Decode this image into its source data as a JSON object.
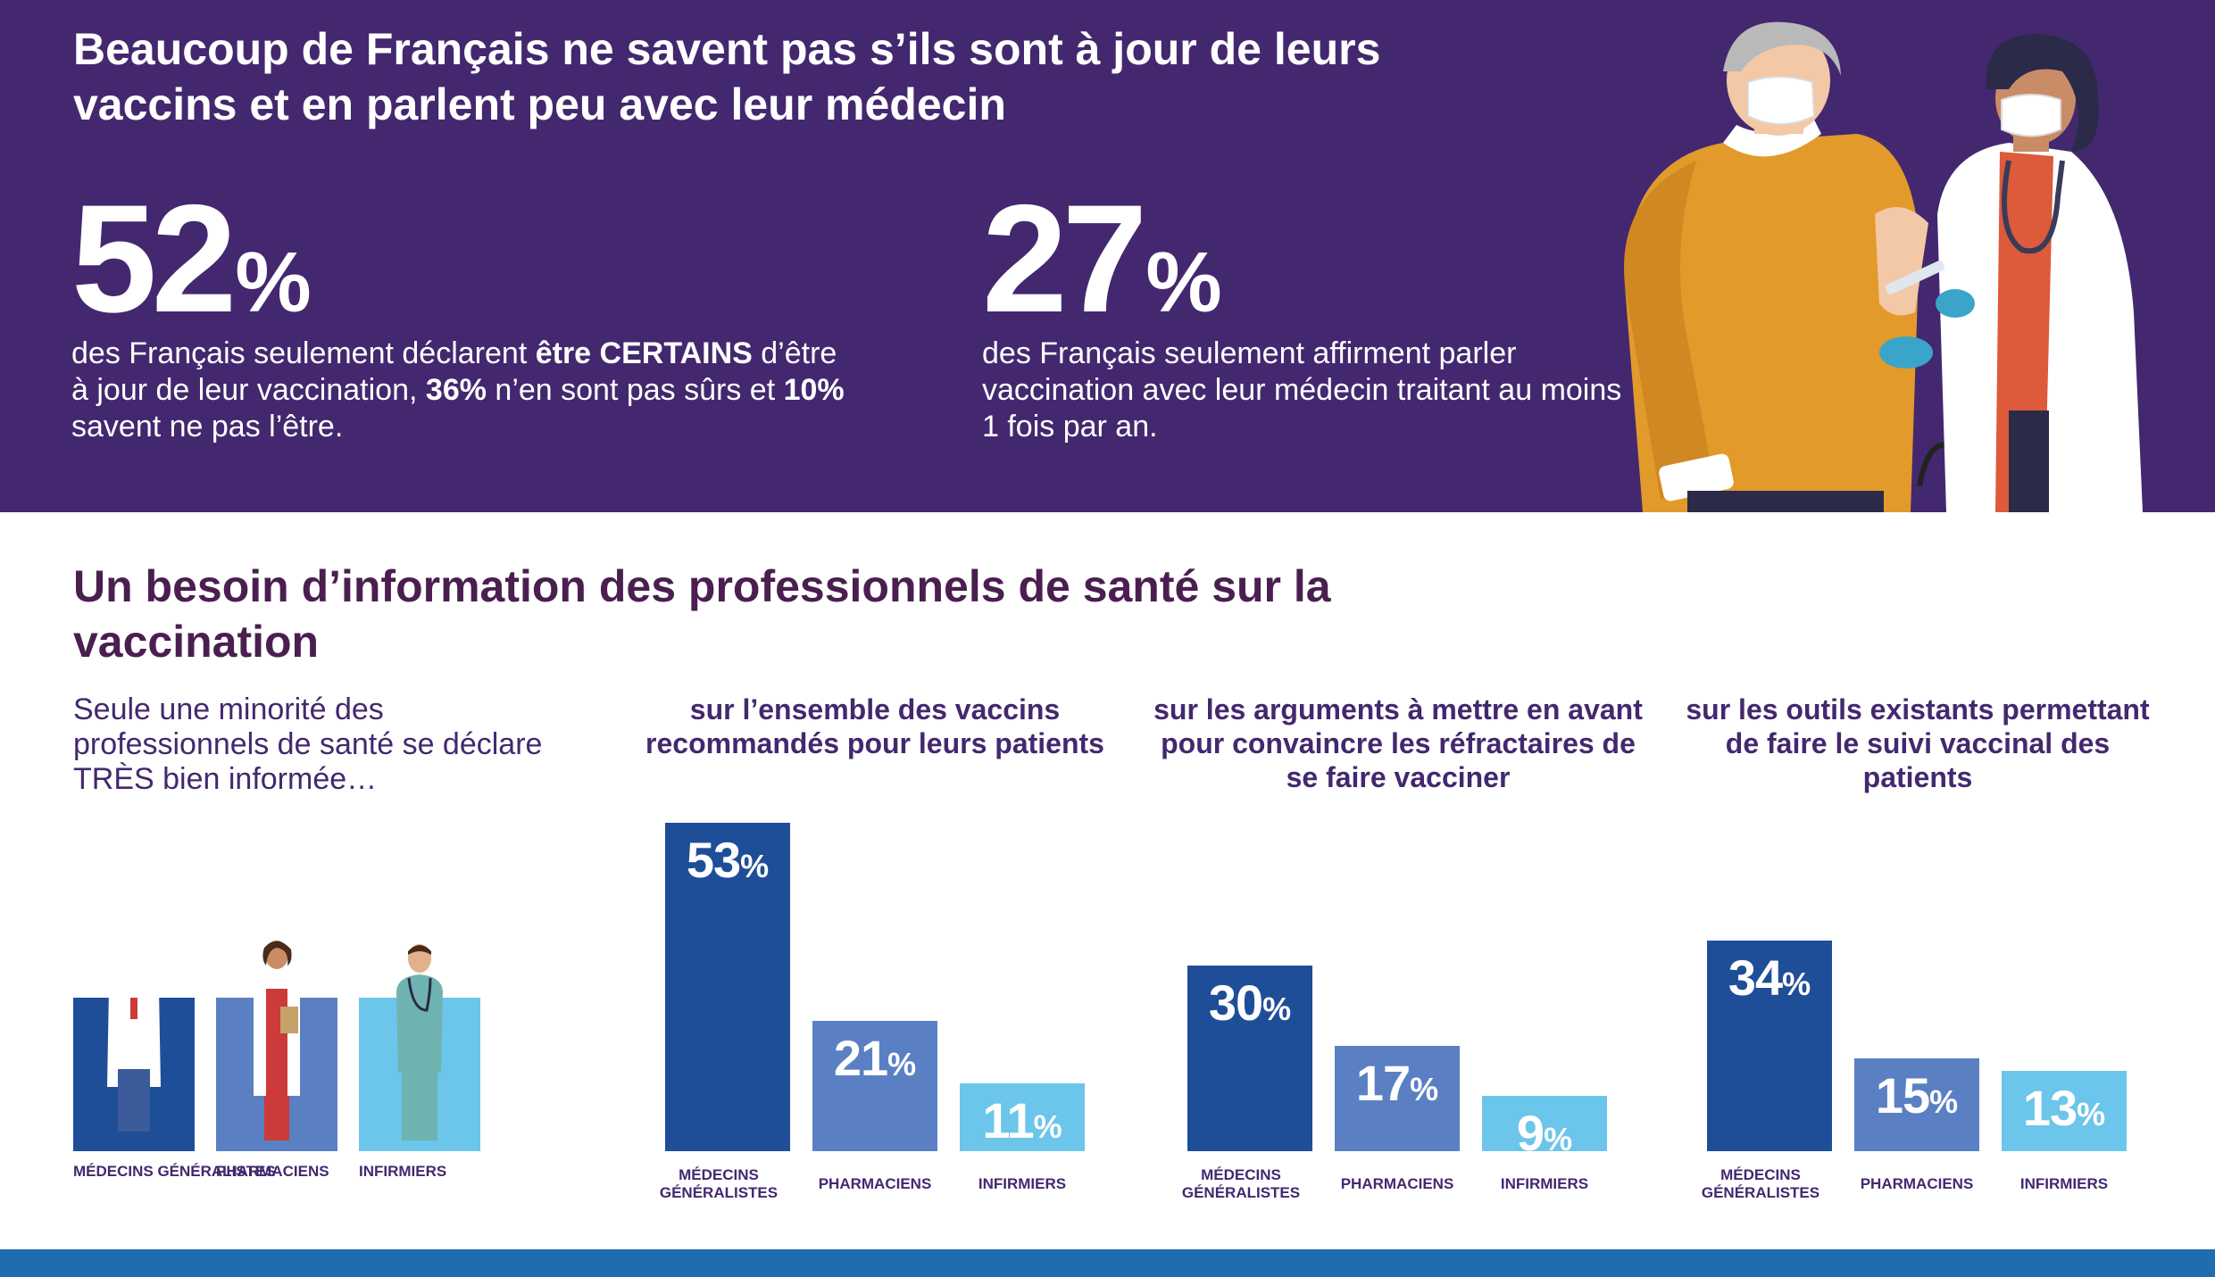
{
  "headline": "Beaucoup de Français ne savent pas s’ils sont à jour de leurs vaccins et en parlent peu avec leur médecin",
  "stat1": {
    "number": "52",
    "percent": "%",
    "text_a": "des Français seulement déclarent ",
    "text_b": "être CERTAINS",
    "text_c": " d’être à jour de leur vaccination, ",
    "text_d": "36%",
    "text_e": " n’en sont pas sûrs et ",
    "text_f": "10%",
    "text_g": " savent ne pas l’être."
  },
  "stat2": {
    "number": "27",
    "percent": "%",
    "text": "des Français seulement affirment parler vaccination avec leur médecin traitant au moins 1 fois par an."
  },
  "section2": {
    "title": "Un besoin d’information des professionnels de santé sur la vaccination",
    "intro": "Seule une minorité des professionnels de santé se déclare TRÈS bien informée…"
  },
  "professionals": {
    "labels": [
      "MÉDECINS GÉNÉRALISTES",
      "PHARMACIENS",
      "INFIRMIERS"
    ]
  },
  "colors": {
    "purple": "#43286f",
    "medecins": "#1f4e99",
    "pharmaciens": "#5a80c3",
    "infirmiers": "#6cc5ea"
  },
  "chart_data": [
    {
      "type": "bar",
      "title": "sur l’ensemble des vaccins recommandés pour leurs patients",
      "categories": [
        "MÉDECINS GÉNÉRALISTES",
        "PHARMACIENS",
        "INFIRMIERS"
      ],
      "values": [
        53,
        21,
        11
      ],
      "value_suffix": "%",
      "ylim": [
        0,
        53
      ]
    },
    {
      "type": "bar",
      "title": "sur les arguments à mettre en avant pour convaincre les réfractaires de se faire vacciner",
      "categories": [
        "MÉDECINS GÉNÉRALISTES",
        "PHARMACIENS",
        "INFIRMIERS"
      ],
      "values": [
        30,
        17,
        9
      ],
      "value_suffix": "%",
      "ylim": [
        0,
        53
      ]
    },
    {
      "type": "bar",
      "title": "sur les outils existants permettant de faire le suivi vaccinal des patients",
      "categories": [
        "MÉDECINS GÉNÉRALISTES",
        "PHARMACIENS",
        "INFIRMIERS"
      ],
      "values": [
        34,
        15,
        13
      ],
      "value_suffix": "%",
      "ylim": [
        0,
        53
      ]
    }
  ]
}
